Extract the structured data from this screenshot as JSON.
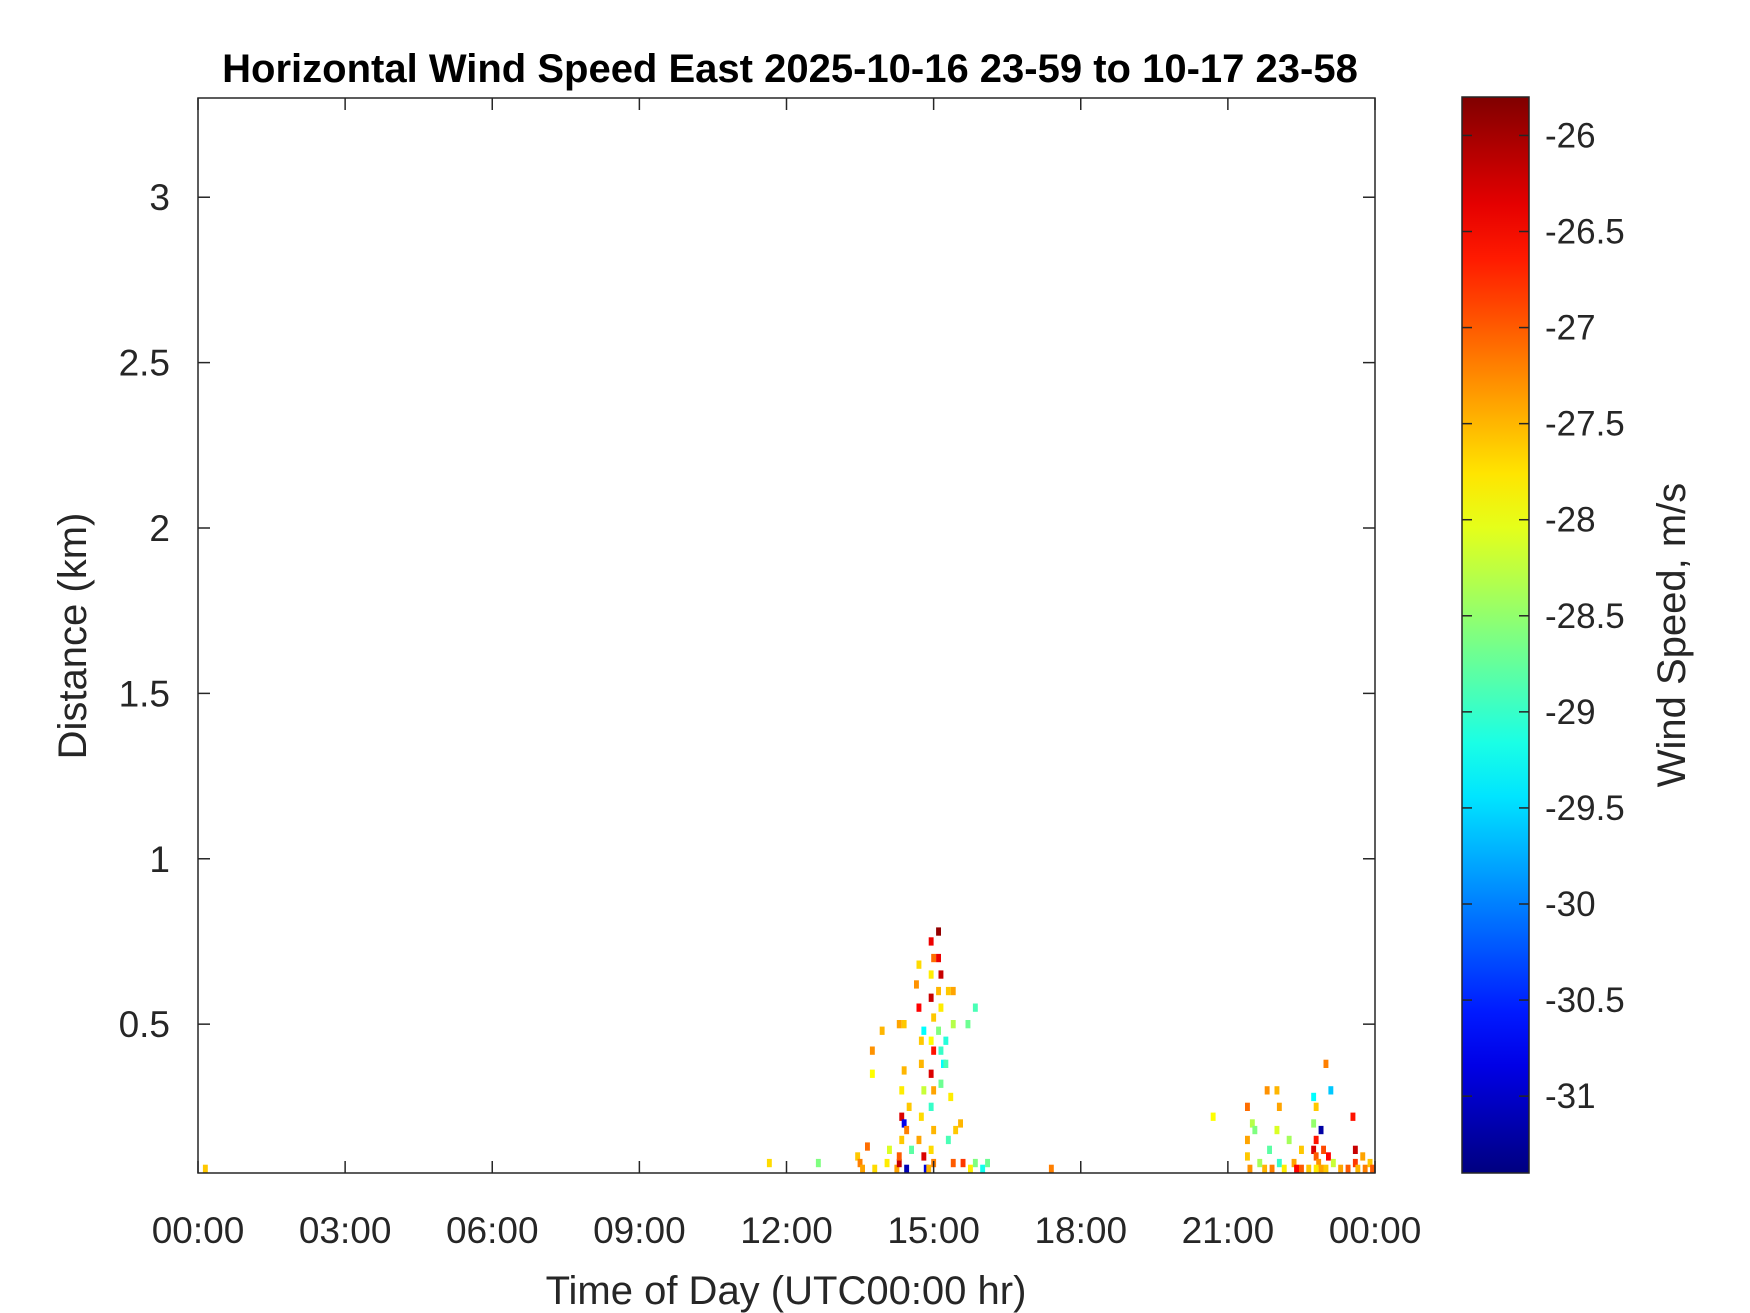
{
  "chart_data": {
    "type": "heatmap",
    "title": "Horizontal Wind Speed East 2025-10-16 23-59 to 10-17 23-58",
    "xlabel": "Time of Day (UTC00:00 hr)",
    "ylabel": "Distance (km)",
    "colorbar_label": "Wind Speed, m/s",
    "colormap": "jet",
    "x_unit": "hours",
    "xlim": [
      0,
      24
    ],
    "ylim": [
      0.05,
      3.3
    ],
    "clim": [
      -31.4,
      -25.8
    ],
    "x_ticks": [
      0,
      3,
      6,
      9,
      12,
      15,
      18,
      21,
      24
    ],
    "x_tick_labels": [
      "00:00",
      "03:00",
      "06:00",
      "09:00",
      "12:00",
      "15:00",
      "18:00",
      "21:00",
      "00:00"
    ],
    "y_ticks": [
      0.5,
      1,
      1.5,
      2,
      2.5,
      3
    ],
    "y_tick_labels": [
      "0.5",
      "1",
      "1.5",
      "2",
      "2.5",
      "3"
    ],
    "c_ticks": [
      -31,
      -30.5,
      -30,
      -29.5,
      -29,
      -28.5,
      -28,
      -27.5,
      -27,
      -26.5,
      -26
    ],
    "c_tick_labels": [
      "-31",
      "-30.5",
      "-30",
      "-29.5",
      "-29",
      "-28.5",
      "-28",
      "-27.5",
      "-27",
      "-26.5",
      "-26"
    ],
    "grid": false,
    "cell_width_hours": 0.1,
    "cell_height_km": 0.025,
    "points": [
      [
        0.15,
        0.05,
        -27.6
      ],
      [
        11.65,
        0.08,
        -27.7
      ],
      [
        12.65,
        0.08,
        -28.6
      ],
      [
        13.45,
        0.1,
        -27.6
      ],
      [
        13.5,
        0.08,
        -27.2
      ],
      [
        13.55,
        0.05,
        -27.4
      ],
      [
        13.65,
        0.13,
        -27.1
      ],
      [
        13.75,
        0.35,
        -27.9
      ],
      [
        13.75,
        0.42,
        -27.3
      ],
      [
        13.8,
        0.05,
        -27.7
      ],
      [
        13.95,
        0.48,
        -27.5
      ],
      [
        14.05,
        0.08,
        -27.8
      ],
      [
        14.1,
        0.12,
        -28.1
      ],
      [
        14.25,
        0.05,
        -27.4
      ],
      [
        14.3,
        0.08,
        -26.2
      ],
      [
        14.3,
        0.1,
        -27.0
      ],
      [
        14.35,
        0.15,
        -27.6
      ],
      [
        14.35,
        0.22,
        -26.3
      ],
      [
        14.4,
        0.2,
        -30.8
      ],
      [
        14.35,
        0.3,
        -27.8
      ],
      [
        14.4,
        0.36,
        -27.5
      ],
      [
        14.3,
        0.5,
        -27.4
      ],
      [
        14.4,
        0.5,
        -27.6
      ],
      [
        14.45,
        0.05,
        -31.1
      ],
      [
        14.45,
        0.18,
        -27.2
      ],
      [
        14.5,
        0.25,
        -27.6
      ],
      [
        14.55,
        0.12,
        -28.8
      ],
      [
        14.65,
        0.62,
        -27.3
      ],
      [
        14.7,
        0.68,
        -27.7
      ],
      [
        14.7,
        0.55,
        -26.5
      ],
      [
        14.75,
        0.45,
        -27.6
      ],
      [
        14.75,
        0.38,
        -27.5
      ],
      [
        14.8,
        0.3,
        -28.2
      ],
      [
        14.75,
        0.22,
        -27.7
      ],
      [
        14.7,
        0.15,
        -27.4
      ],
      [
        14.8,
        0.1,
        -26.3
      ],
      [
        14.85,
        0.05,
        -30.9
      ],
      [
        14.8,
        0.48,
        -29.3
      ],
      [
        14.95,
        0.75,
        -26.4
      ],
      [
        14.95,
        0.65,
        -27.8
      ],
      [
        15.0,
        0.7,
        -27.1
      ],
      [
        14.95,
        0.58,
        -26.2
      ],
      [
        15.0,
        0.52,
        -27.6
      ],
      [
        14.95,
        0.45,
        -27.9
      ],
      [
        15.0,
        0.42,
        -26.6
      ],
      [
        14.95,
        0.35,
        -26.3
      ],
      [
        15.0,
        0.3,
        -27.4
      ],
      [
        14.95,
        0.25,
        -29.0
      ],
      [
        15.0,
        0.18,
        -27.5
      ],
      [
        14.95,
        0.12,
        -27.7
      ],
      [
        15.0,
        0.08,
        -27.2
      ],
      [
        14.9,
        0.05,
        -27.5
      ],
      [
        15.1,
        0.78,
        -25.9
      ],
      [
        15.1,
        0.7,
        -26.4
      ],
      [
        15.15,
        0.65,
        -26.2
      ],
      [
        15.1,
        0.6,
        -27.5
      ],
      [
        15.15,
        0.55,
        -27.8
      ],
      [
        15.1,
        0.48,
        -28.6
      ],
      [
        15.15,
        0.42,
        -29.0
      ],
      [
        15.2,
        0.38,
        -29.3
      ],
      [
        15.15,
        0.32,
        -28.7
      ],
      [
        15.25,
        0.45,
        -29.1
      ],
      [
        15.25,
        0.38,
        -28.9
      ],
      [
        15.3,
        0.6,
        -27.6
      ],
      [
        15.35,
        0.28,
        -27.8
      ],
      [
        15.4,
        0.6,
        -27.4
      ],
      [
        15.4,
        0.5,
        -28.3
      ],
      [
        15.45,
        0.18,
        -27.6
      ],
      [
        15.3,
        0.15,
        -28.9
      ],
      [
        15.4,
        0.08,
        -27.0
      ],
      [
        15.55,
        0.2,
        -27.5
      ],
      [
        15.6,
        0.08,
        -26.8
      ],
      [
        15.7,
        0.5,
        -28.7
      ],
      [
        15.75,
        0.05,
        -27.8
      ],
      [
        15.85,
        0.08,
        -28.6
      ],
      [
        15.85,
        0.55,
        -28.9
      ],
      [
        16.1,
        0.08,
        -28.7
      ],
      [
        16.0,
        0.05,
        -29.2
      ],
      [
        17.4,
        0.05,
        -27.2
      ],
      [
        20.7,
        0.22,
        -27.9
      ],
      [
        21.4,
        0.25,
        -27.1
      ],
      [
        21.4,
        0.15,
        -27.4
      ],
      [
        21.4,
        0.1,
        -27.6
      ],
      [
        21.45,
        0.05,
        -27.3
      ],
      [
        21.5,
        0.2,
        -28.3
      ],
      [
        21.55,
        0.18,
        -28.6
      ],
      [
        21.65,
        0.08,
        -28.4
      ],
      [
        21.75,
        0.05,
        -27.5
      ],
      [
        21.8,
        0.3,
        -27.3
      ],
      [
        21.85,
        0.12,
        -28.8
      ],
      [
        21.9,
        0.05,
        -27.2
      ],
      [
        22.0,
        0.3,
        -27.5
      ],
      [
        22.05,
        0.25,
        -27.4
      ],
      [
        22.0,
        0.18,
        -28.1
      ],
      [
        22.05,
        0.08,
        -29.0
      ],
      [
        22.15,
        0.05,
        -27.8
      ],
      [
        22.25,
        0.15,
        -28.4
      ],
      [
        22.35,
        0.08,
        -27.4
      ],
      [
        22.4,
        0.05,
        -26.5
      ],
      [
        22.5,
        0.12,
        -27.6
      ],
      [
        22.5,
        0.05,
        -27.0
      ],
      [
        22.65,
        0.05,
        -27.6
      ],
      [
        22.75,
        0.28,
        -29.3
      ],
      [
        22.8,
        0.25,
        -27.6
      ],
      [
        22.75,
        0.2,
        -28.5
      ],
      [
        22.8,
        0.15,
        -26.6
      ],
      [
        22.75,
        0.12,
        -26.3
      ],
      [
        22.8,
        0.1,
        -27.0
      ],
      [
        22.85,
        0.08,
        -27.3
      ],
      [
        22.8,
        0.05,
        -27.8
      ],
      [
        22.9,
        0.18,
        -31.2
      ],
      [
        22.95,
        0.12,
        -26.9
      ],
      [
        22.9,
        0.05,
        -27.4
      ],
      [
        23.0,
        0.38,
        -27.2
      ],
      [
        23.05,
        0.1,
        -26.5
      ],
      [
        23.0,
        0.05,
        -27.6
      ],
      [
        23.1,
        0.3,
        -29.6
      ],
      [
        23.15,
        0.08,
        -28.2
      ],
      [
        23.3,
        0.05,
        -27.4
      ],
      [
        23.45,
        0.05,
        -27.0
      ],
      [
        23.55,
        0.22,
        -26.6
      ],
      [
        23.6,
        0.12,
        -26.2
      ],
      [
        23.6,
        0.08,
        -26.8
      ],
      [
        23.65,
        0.05,
        -27.5
      ],
      [
        23.75,
        0.1,
        -27.4
      ],
      [
        23.8,
        0.05,
        -27.2
      ],
      [
        23.9,
        0.08,
        -27.6
      ],
      [
        23.95,
        0.05,
        -27.0
      ]
    ]
  }
}
